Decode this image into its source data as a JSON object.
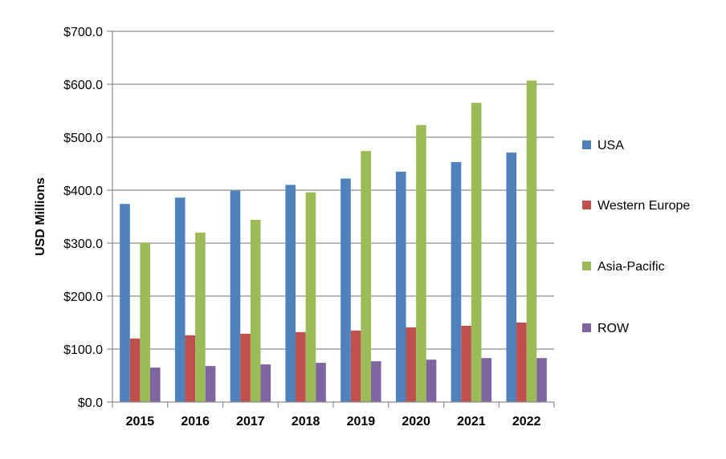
{
  "chart_data": {
    "type": "bar",
    "ylabel": "USD Millions",
    "ylim": [
      0,
      700
    ],
    "yticks": [
      "$0.0",
      "$100.0",
      "$200.0",
      "$300.0",
      "$400.0",
      "$500.0",
      "$600.0",
      "$700.0"
    ],
    "grid": true,
    "legend_position": "right",
    "categories": [
      "2015",
      "2016",
      "2017",
      "2018",
      "2019",
      "2020",
      "2021",
      "2022"
    ],
    "series": [
      {
        "name": "USA",
        "color": "#4F81BD",
        "values": [
          374,
          386,
          399,
          410,
          422,
          435,
          453,
          471
        ]
      },
      {
        "name": "Western Europe",
        "color": "#C0504D",
        "values": [
          120,
          126,
          129,
          132,
          135,
          141,
          144,
          150
        ]
      },
      {
        "name": "Asia-Pacific",
        "color": "#9BBB59",
        "values": [
          301,
          320,
          344,
          396,
          474,
          523,
          565,
          607
        ]
      },
      {
        "name": "ROW",
        "color": "#8064A2",
        "values": [
          65,
          68,
          71,
          74,
          77,
          80,
          83,
          83
        ]
      }
    ]
  }
}
